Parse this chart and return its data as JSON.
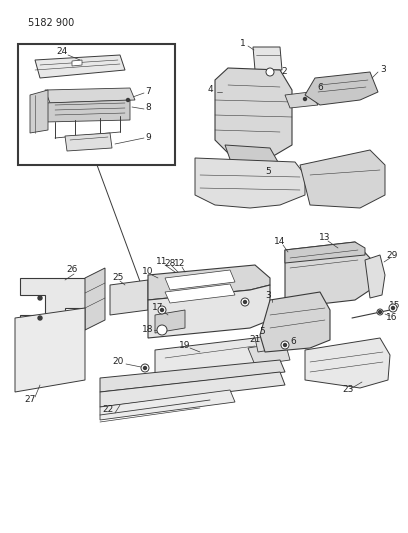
{
  "title": "5182 900",
  "bg": "#ffffff",
  "lc": "#3a3a3a",
  "tc": "#222222",
  "fig_w": 4.08,
  "fig_h": 5.33,
  "dpi": 100
}
